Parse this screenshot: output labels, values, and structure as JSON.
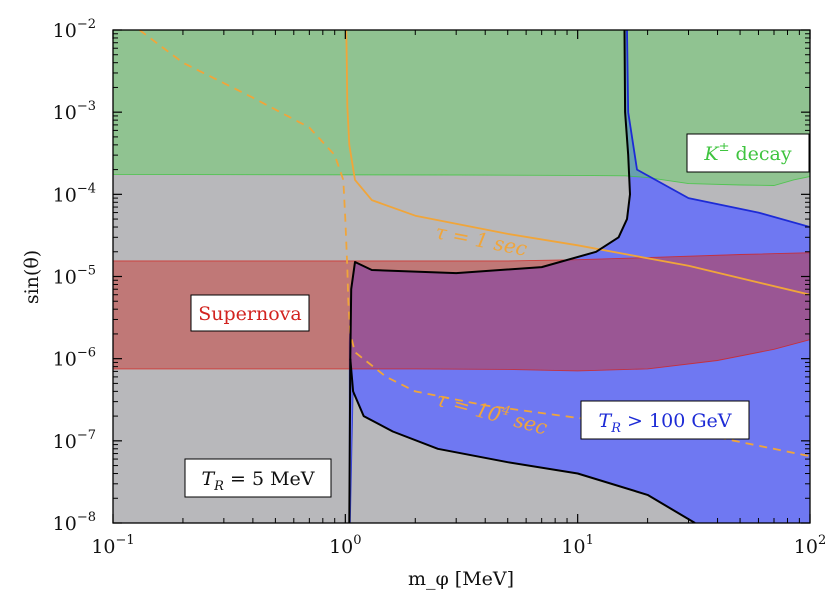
{
  "chart_data": {
    "type": "area",
    "title": "",
    "xlabel": "m_φ [MeV]",
    "ylabel": "sin(θ)",
    "xscale": "log",
    "yscale": "log",
    "xlim": [
      0.1,
      100
    ],
    "ylim": [
      1e-08,
      0.01
    ],
    "grid": false,
    "x_ticks": [
      {
        "value": 0.1,
        "base": "10",
        "exp": "−1"
      },
      {
        "value": 1,
        "base": "10",
        "exp": "0"
      },
      {
        "value": 10,
        "base": "10",
        "exp": "1"
      },
      {
        "value": 100,
        "base": "10",
        "exp": "2"
      }
    ],
    "y_ticks": [
      {
        "value": 1e-08,
        "base": "10",
        "exp": "−8"
      },
      {
        "value": 1e-07,
        "base": "10",
        "exp": "−7"
      },
      {
        "value": 1e-06,
        "base": "10",
        "exp": "−6"
      },
      {
        "value": 1e-05,
        "base": "10",
        "exp": "−5"
      },
      {
        "value": 0.0001,
        "base": "10",
        "exp": "−4"
      },
      {
        "value": 0.001,
        "base": "10",
        "exp": "−3"
      },
      {
        "value": 0.01,
        "base": "10",
        "exp": "−2"
      }
    ],
    "regions": [
      {
        "name": "T_R = 5 MeV",
        "label_parts": {
          "var": "T",
          "sub": "R",
          "rest": " = 5 MeV"
        },
        "color": "#b8b8bb",
        "points": [
          [
            0.1,
            1e-08
          ],
          [
            100,
            1e-08
          ],
          [
            100,
            0.01
          ],
          [
            0.1,
            0.01
          ]
        ]
      },
      {
        "name": "T_R > 100 GeV",
        "label_parts": {
          "var": "T",
          "sub": "R",
          "rest": " > 100 GeV"
        },
        "color": "#6f78f2",
        "text_color": "#1d2bd6",
        "points": [
          [
            1.04,
            1e-08
          ],
          [
            1.04,
            1.6e-06
          ],
          [
            1.06,
            7e-06
          ],
          [
            1.1,
            1.5e-05
          ],
          [
            1.3,
            1.2e-05
          ],
          [
            3,
            1.1e-05
          ],
          [
            7,
            1.3e-05
          ],
          [
            12,
            2e-05
          ],
          [
            15,
            3e-05
          ],
          [
            16.3,
            5e-05
          ],
          [
            16.8,
            0.0001
          ],
          [
            16.5,
            0.0003
          ],
          [
            16,
            0.001
          ],
          [
            15.9,
            0.01
          ],
          [
            16.3,
            0.01
          ],
          [
            16.5,
            0.001
          ],
          [
            18,
            0.0002
          ],
          [
            30,
            9e-05
          ],
          [
            60,
            6e-05
          ],
          [
            100,
            4e-05
          ],
          [
            100,
            1e-08
          ],
          [
            32,
            1e-08
          ],
          [
            20,
            2.2e-08
          ],
          [
            10,
            4e-08
          ],
          [
            5,
            5.5e-08
          ],
          [
            2.5,
            8e-08
          ],
          [
            1.6,
            1.3e-07
          ],
          [
            1.2,
            2e-07
          ],
          [
            1.08,
            4e-07
          ],
          [
            1.05,
            1e-08
          ]
        ]
      },
      {
        "name": "K± decay",
        "label_parts": {
          "var": "K",
          "sup": "±",
          "rest": " decay"
        },
        "color": "#5fd15f",
        "opacity": 0.45,
        "text_color": "#3fc43f",
        "points": [
          [
            0.1,
            0.000175
          ],
          [
            3,
            0.000172
          ],
          [
            10,
            0.00017
          ],
          [
            16,
            0.000168
          ],
          [
            20,
            0.00016
          ],
          [
            30,
            0.000135
          ],
          [
            50,
            0.00013
          ],
          [
            70,
            0.000128
          ],
          [
            85,
            0.00015
          ],
          [
            100,
            0.000165
          ],
          [
            100,
            0.01
          ],
          [
            0.1,
            0.01
          ]
        ]
      },
      {
        "name": "Supernova",
        "color": "#c8332f",
        "opacity": 0.48,
        "text_color": "#d2231f",
        "points": [
          [
            0.1,
            7.5e-07
          ],
          [
            2,
            7.5e-07
          ],
          [
            5,
            7.4e-07
          ],
          [
            10,
            7.1e-07
          ],
          [
            20,
            7.5e-07
          ],
          [
            40,
            9.5e-07
          ],
          [
            70,
            1.3e-06
          ],
          [
            100,
            1.7e-06
          ],
          [
            100,
            1.95e-05
          ],
          [
            50,
            1.85e-05
          ],
          [
            20,
            1.7e-05
          ],
          [
            10,
            1.6e-05
          ],
          [
            5,
            1.55e-05
          ],
          [
            1,
            1.55e-05
          ],
          [
            0.1,
            1.55e-05
          ]
        ]
      }
    ],
    "lines": [
      {
        "name": "τ = 1 sec",
        "label_parts": {
          "pre": "τ = 1",
          "sup": "",
          "post": " sec"
        },
        "color": "#f0a53a",
        "style": "solid",
        "points": [
          [
            1.01,
            0.01
          ],
          [
            1.015,
            0.004
          ],
          [
            1.02,
            0.0012
          ],
          [
            1.04,
            0.0004
          ],
          [
            1.1,
            0.00015
          ],
          [
            1.3,
            8.5e-05
          ],
          [
            2,
            5.5e-05
          ],
          [
            5,
            3.3e-05
          ],
          [
            10,
            2.4e-05
          ],
          [
            30,
            1.35e-05
          ],
          [
            100,
            6e-06
          ]
        ]
      },
      {
        "name": "τ = 10⁴ sec",
        "label_parts": {
          "pre": "τ = 10",
          "sup": "4",
          "post": " sec"
        },
        "color": "#f0a53a",
        "style": "dashed",
        "points": [
          [
            0.13,
            0.01
          ],
          [
            0.2,
            0.004
          ],
          [
            0.4,
            0.0015
          ],
          [
            0.7,
            0.00065
          ],
          [
            0.9,
            0.0003
          ],
          [
            0.98,
            0.00015
          ],
          [
            1.0,
            5e-05
          ],
          [
            1.02,
            1.3e-05
          ],
          [
            1.03,
            5e-06
          ],
          [
            1.05,
            2e-06
          ],
          [
            1.1,
            1.2e-06
          ],
          [
            1.5,
            6e-07
          ],
          [
            2,
            4e-07
          ],
          [
            4,
            2.7e-07
          ],
          [
            10,
            1.9e-07
          ],
          [
            30,
            1.3e-07
          ],
          [
            100,
            6.5e-08
          ]
        ]
      },
      {
        "name": "boundary",
        "color": "#000000",
        "style": "solid",
        "points": [
          [
            1.04,
            1e-08
          ],
          [
            1.05,
            1e-06
          ],
          [
            1.06,
            7e-06
          ],
          [
            1.1,
            1.5e-05
          ],
          [
            1.3,
            1.2e-05
          ],
          [
            3,
            1.1e-05
          ],
          [
            7,
            1.3e-05
          ],
          [
            12,
            2e-05
          ],
          [
            15,
            3e-05
          ],
          [
            16.3,
            5e-05
          ],
          [
            16.8,
            0.0001
          ],
          [
            16.5,
            0.0003
          ],
          [
            16,
            0.001
          ],
          [
            15.9,
            0.01
          ]
        ]
      },
      {
        "name": "boundary-lower",
        "color": "#000000",
        "style": "solid",
        "points": [
          [
            1.05,
            1e-06
          ],
          [
            1.08,
            4e-07
          ],
          [
            1.2,
            2e-07
          ],
          [
            1.6,
            1.3e-07
          ],
          [
            2.5,
            8e-08
          ],
          [
            5,
            5.5e-08
          ],
          [
            10,
            4e-08
          ],
          [
            20,
            2.2e-08
          ],
          [
            32,
            1e-08
          ]
        ]
      },
      {
        "name": "K-boundary",
        "color": "#1d2bd6",
        "style": "solid",
        "points": [
          [
            16.3,
            0.01
          ],
          [
            16.5,
            0.001
          ],
          [
            18,
            0.0002
          ],
          [
            30,
            9e-05
          ],
          [
            60,
            6e-05
          ],
          [
            100,
            4e-05
          ]
        ]
      }
    ]
  }
}
